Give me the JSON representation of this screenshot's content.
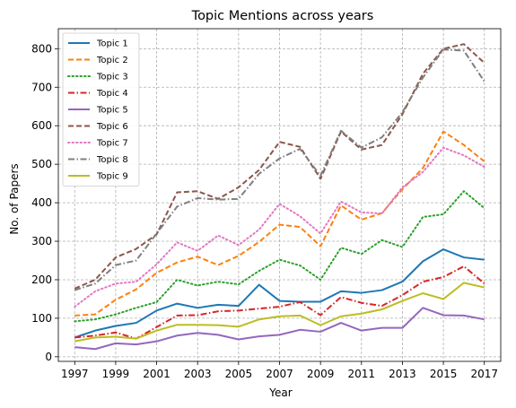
{
  "chart_data": {
    "type": "line",
    "title": "Topic Mentions across years",
    "xlabel": "Year",
    "ylabel": "No. of Papers",
    "xlim": [
      1996.2,
      2017.8
    ],
    "ylim": [
      -12,
      852
    ],
    "xticks": [
      1997,
      1999,
      2001,
      2003,
      2005,
      2007,
      2009,
      2011,
      2013,
      2015,
      2017
    ],
    "yticks": [
      0,
      100,
      200,
      300,
      400,
      500,
      600,
      700,
      800
    ],
    "grid": true,
    "legend_position": "top-left",
    "x": [
      1997,
      1998,
      1999,
      2000,
      2001,
      2002,
      2003,
      2004,
      2005,
      2006,
      2007,
      2008,
      2009,
      2010,
      2011,
      2012,
      2013,
      2014,
      2015,
      2016,
      2017
    ],
    "series": [
      {
        "name": "Topic 1",
        "color": "#1f77b4",
        "dash": "solid",
        "values": [
          50,
          68,
          80,
          88,
          120,
          138,
          127,
          135,
          132,
          187,
          145,
          143,
          143,
          170,
          166,
          173,
          195,
          248,
          279,
          258,
          252
        ]
      },
      {
        "name": "Topic 2",
        "color": "#ff7f0e",
        "dash": "dashed",
        "values": [
          107,
          110,
          148,
          175,
          218,
          245,
          260,
          238,
          262,
          298,
          343,
          337,
          287,
          393,
          356,
          373,
          435,
          490,
          585,
          550,
          507
        ]
      },
      {
        "name": "Topic 3",
        "color": "#2ca02c",
        "dash": "dotted",
        "values": [
          92,
          97,
          110,
          127,
          142,
          200,
          185,
          195,
          188,
          223,
          252,
          237,
          200,
          283,
          267,
          303,
          285,
          363,
          370,
          430,
          386
        ]
      },
      {
        "name": "Topic 4",
        "color": "#d62728",
        "dash": "dashdot",
        "values": [
          50,
          55,
          63,
          47,
          77,
          107,
          108,
          118,
          120,
          125,
          130,
          142,
          108,
          155,
          140,
          132,
          160,
          195,
          207,
          235,
          190
        ]
      },
      {
        "name": "Topic 5",
        "color": "#9467bd",
        "dash": "solid",
        "values": [
          25,
          20,
          35,
          32,
          40,
          55,
          62,
          57,
          45,
          53,
          57,
          70,
          65,
          88,
          68,
          75,
          75,
          127,
          108,
          107,
          97
        ]
      },
      {
        "name": "Topic 6",
        "color": "#8c564b",
        "dash": "dashed",
        "values": [
          177,
          200,
          258,
          280,
          318,
          427,
          430,
          410,
          440,
          485,
          558,
          545,
          462,
          585,
          538,
          550,
          630,
          735,
          800,
          812,
          763
        ]
      },
      {
        "name": "Topic 7",
        "color": "#e377c2",
        "dash": "dotted",
        "values": [
          130,
          170,
          190,
          195,
          240,
          297,
          275,
          315,
          290,
          330,
          397,
          365,
          320,
          403,
          375,
          372,
          440,
          480,
          543,
          523,
          493
        ]
      },
      {
        "name": "Topic 8",
        "color": "#7f7f7f",
        "dash": "dashdot",
        "values": [
          173,
          190,
          238,
          250,
          320,
          390,
          412,
          408,
          410,
          475,
          515,
          540,
          470,
          587,
          543,
          570,
          635,
          725,
          798,
          795,
          715
        ]
      },
      {
        "name": "Topic 9",
        "color": "#bcbd22",
        "dash": "solid",
        "values": [
          40,
          50,
          52,
          47,
          68,
          83,
          83,
          82,
          78,
          97,
          105,
          107,
          82,
          105,
          112,
          123,
          145,
          165,
          150,
          192,
          180
        ]
      }
    ]
  }
}
